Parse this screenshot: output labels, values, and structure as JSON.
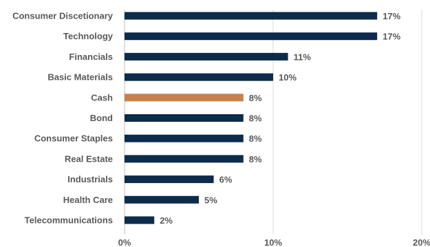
{
  "chart_data": {
    "type": "bar",
    "orientation": "horizontal",
    "categories": [
      "Consumer Discetionary",
      "Technology",
      "Financials",
      "Basic Materials",
      "Cash",
      "Bond",
      "Consumer Staples",
      "Real Estate",
      "Industrials",
      "Health Care",
      "Telecommunications"
    ],
    "values": [
      17,
      17,
      11,
      10,
      8,
      8,
      8,
      8,
      6,
      5,
      2
    ],
    "value_labels": [
      "17%",
      "17%",
      "11%",
      "10%",
      "8%",
      "8%",
      "8%",
      "8%",
      "6%",
      "5%",
      "2%"
    ],
    "xlim": [
      0,
      20
    ],
    "xticks": [
      0,
      10,
      20
    ],
    "xtick_labels": [
      "0%",
      "10%",
      "20%"
    ],
    "grid": "vertical",
    "legend": "none",
    "colors": {
      "default": "#0d2b4a",
      "highlight": "#c9804f",
      "grid": "#d9d9d9",
      "text": "#595959"
    },
    "highlight_category": "Cash"
  }
}
